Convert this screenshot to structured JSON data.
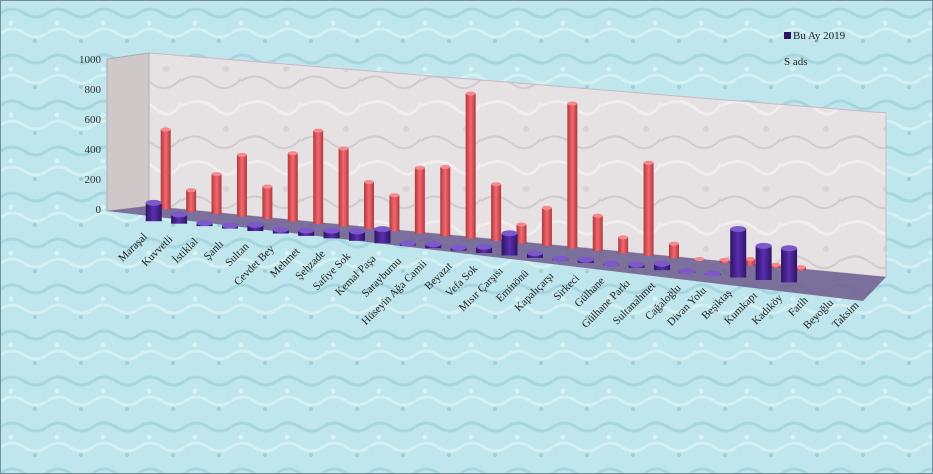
{
  "chart_data": {
    "type": "bar",
    "title": "",
    "xlabel": "",
    "ylabel": "",
    "ylim": [
      0,
      1000
    ],
    "yticks": [
      "0",
      "200",
      "400",
      "600",
      "800",
      "1000"
    ],
    "grid": false,
    "legend_position": "top-right",
    "categories": [
      "Maraşal",
      "Kuvvetli",
      "İstiklal",
      "Şanlı",
      "Sultan",
      "Cevdet Bey",
      "Mehmet",
      "Şehzade",
      "Safiye Sok",
      "Kemal Paşa",
      "Sarayburnu",
      "Hüseyin Ağa Camii",
      "Beyazıt",
      "Vefa Sok",
      "Mısır Çarşısı",
      "Eminönü",
      "Kapalıçarşı",
      "Sirkeci",
      "Gülhane",
      "Gülhane Parkı",
      "Sultanahmet",
      "Cağaloğlu",
      "Divan Yolu",
      "Beşiktaş",
      "Kumkapı",
      "Kadıköy",
      "Fatih",
      "Beyoğlu",
      "Taksim"
    ],
    "series": [
      {
        "name": "",
        "color": "#6a3da0",
        "values": [
          120,
          60,
          20,
          20,
          40,
          25,
          35,
          50,
          60,
          90,
          15,
          25,
          20,
          40,
          140,
          30,
          10,
          20,
          10,
          20,
          40,
          10,
          10,
          300,
          210,
          210,
          0,
          0,
          0
        ]
      },
      {
        "name": "",
        "color": "#e0555a",
        "values": [
          520,
          140,
          260,
          400,
          210,
          440,
          600,
          500,
          300,
          230,
          420,
          440,
          920,
          360,
          120,
          240,
          910,
          220,
          100,
          580,
          90,
          10,
          20,
          40,
          20,
          20,
          0,
          0,
          0
        ]
      }
    ],
    "legend": [
      "Bu Ay 2019",
      "S ads"
    ]
  }
}
